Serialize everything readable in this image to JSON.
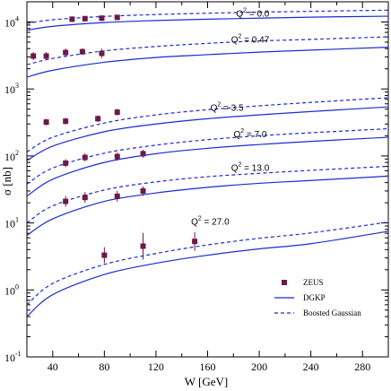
{
  "chart_data": {
    "type": "line",
    "xlabel": "W  [GeV]",
    "ylabel": "σ  [nb]",
    "xlim": [
      20,
      300
    ],
    "ylim": [
      0.1,
      20000
    ],
    "yscale": "log",
    "x_ticks": [
      40,
      80,
      120,
      160,
      200,
      240,
      280
    ],
    "y_ticks": [
      {
        "value": 0.1,
        "base": "10",
        "exp": "-1"
      },
      {
        "value": 1,
        "base": "10",
        "exp": "0"
      },
      {
        "value": 10,
        "base": "10",
        "exp": "1"
      },
      {
        "value": 100,
        "base": "10",
        "exp": "2"
      },
      {
        "value": 1000,
        "base": "10",
        "exp": "3"
      },
      {
        "value": 10000,
        "base": "10",
        "exp": "4"
      }
    ],
    "grid": false,
    "legend_position": "bottom-right",
    "legend": [
      {
        "label": "ZEUS",
        "style": "marker",
        "color": "#6b1a4a"
      },
      {
        "label": "DGKP",
        "style": "solid",
        "color": "#1c2bd0"
      },
      {
        "label": "Boosted Gaussian",
        "style": "dashed",
        "color": "#1c2bd0"
      }
    ],
    "groups": [
      {
        "q2": "0.0",
        "label_pos": {
          "x": 195,
          "y": 12000
        },
        "dgkp": {
          "x": [
            20,
            40,
            80,
            120,
            160,
            200,
            240,
            300
          ],
          "y": [
            7500,
            8600,
            9800,
            10500,
            11000,
            11400,
            11800,
            12200
          ]
        },
        "boosted": {
          "x": [
            20,
            40,
            80,
            120,
            160,
            200,
            240,
            300
          ],
          "y": [
            9500,
            10800,
            12100,
            12900,
            13500,
            14000,
            14400,
            15000
          ]
        },
        "zeus": {
          "x": [
            55,
            65,
            78,
            90
          ],
          "y": [
            11000,
            11200,
            11400,
            11700
          ],
          "err": [
            0.04,
            0.04,
            0.04,
            0.04
          ]
        }
      },
      {
        "q2": "0.47",
        "label_pos": {
          "x": 193,
          "y": 4900
        },
        "dgkp": {
          "x": [
            20,
            40,
            80,
            120,
            160,
            200,
            240,
            300
          ],
          "y": [
            1500,
            1900,
            2500,
            2950,
            3250,
            3550,
            3800,
            4200
          ]
        },
        "boosted": {
          "x": [
            20,
            40,
            80,
            120,
            160,
            200,
            240,
            300
          ],
          "y": [
            2300,
            2850,
            3700,
            4300,
            4800,
            5200,
            5500,
            6000
          ]
        },
        "zeus": {
          "x": [
            25,
            35,
            50,
            63,
            78
          ],
          "y": [
            3100,
            3100,
            3500,
            3600,
            3400
          ],
          "err": [
            0.06,
            0.06,
            0.06,
            0.05,
            0.07
          ]
        }
      },
      {
        "q2": "3.5",
        "label_pos": {
          "x": 175,
          "y": 470
        },
        "dgkp": {
          "x": [
            20,
            40,
            80,
            120,
            160,
            200,
            240,
            300
          ],
          "y": [
            85,
            140,
            230,
            300,
            360,
            410,
            460,
            540
          ]
        },
        "boosted": {
          "x": [
            20,
            40,
            80,
            120,
            160,
            200,
            240,
            300
          ],
          "y": [
            115,
            190,
            310,
            410,
            490,
            560,
            630,
            740
          ]
        },
        "zeus": {
          "x": [
            35,
            50,
            75,
            90
          ],
          "y": [
            320,
            330,
            360,
            450
          ],
          "err": [
            0.05,
            0.05,
            0.05,
            0.05
          ]
        }
      },
      {
        "q2": "7.0",
        "label_pos": {
          "x": 193,
          "y": 190
        },
        "dgkp": {
          "x": [
            20,
            40,
            80,
            120,
            160,
            200,
            240,
            300
          ],
          "y": [
            25,
            45,
            80,
            108,
            130,
            148,
            165,
            190
          ]
        },
        "boosted": {
          "x": [
            20,
            40,
            80,
            120,
            160,
            200,
            240,
            300
          ],
          "y": [
            38,
            66,
            110,
            145,
            175,
            200,
            222,
            255
          ]
        },
        "zeus": {
          "x": [
            50,
            65,
            90,
            110
          ],
          "y": [
            78,
            95,
            98,
            108
          ],
          "err": [
            0.06,
            0.06,
            0.06,
            0.06
          ]
        }
      },
      {
        "q2": "13.0",
        "label_pos": {
          "x": 193,
          "y": 60
        },
        "dgkp": {
          "x": [
            20,
            40,
            80,
            120,
            160,
            200,
            240,
            300
          ],
          "y": [
            6.5,
            11.5,
            21,
            28,
            34,
            39,
            43,
            50
          ]
        },
        "boosted": {
          "x": [
            20,
            40,
            80,
            120,
            160,
            200,
            240,
            300
          ],
          "y": [
            10,
            18,
            31,
            41,
            49,
            55,
            61,
            70
          ]
        },
        "zeus": {
          "x": [
            50,
            65,
            90,
            110
          ],
          "y": [
            21,
            24,
            25,
            30
          ],
          "err": [
            0.08,
            0.08,
            0.08,
            0.07
          ]
        }
      },
      {
        "q2": "27.0",
        "label_pos": {
          "x": 162,
          "y": 9.5
        },
        "dgkp": {
          "x": [
            20,
            40,
            80,
            120,
            160,
            200,
            240,
            300
          ],
          "y": [
            0.4,
            0.85,
            1.7,
            2.5,
            3.3,
            4.1,
            4.9,
            7.5
          ]
        },
        "boosted": {
          "x": [
            20,
            40,
            80,
            120,
            160,
            200,
            240,
            300
          ],
          "y": [
            0.6,
            1.25,
            2.4,
            3.5,
            4.7,
            5.9,
            7.1,
            10.3
          ]
        },
        "zeus": {
          "x": [
            80,
            110,
            150
          ],
          "y": [
            3.3,
            4.5,
            5.3
          ],
          "err": [
            0.12,
            0.2,
            0.14
          ]
        }
      }
    ]
  }
}
